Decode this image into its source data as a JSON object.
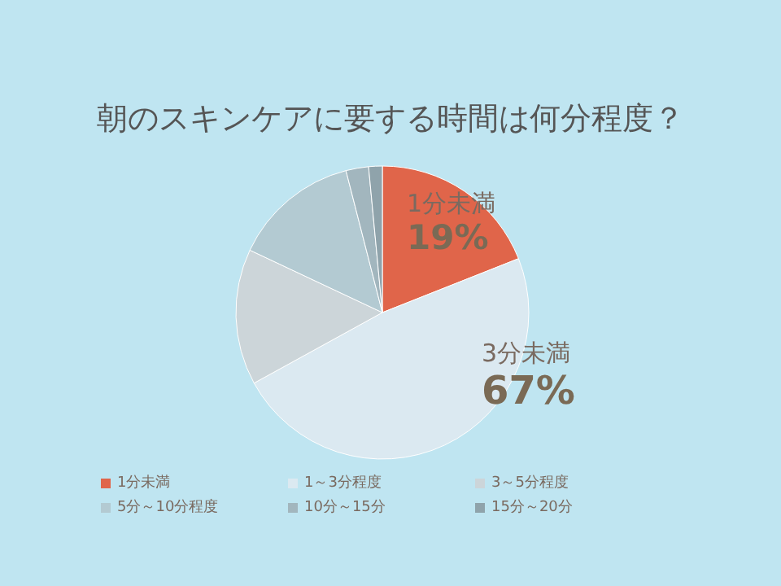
{
  "chart_data": {
    "type": "pie",
    "title": "朝のスキンケアに要する時間は何分程度？",
    "categories": [
      "1分未満",
      "1～3分程度",
      "3～5分程度",
      "5分～10分程度",
      "10分～15分",
      "15分～20分"
    ],
    "values": [
      19,
      48,
      15,
      14,
      2.5,
      1.5
    ],
    "colors": [
      "#e0654a",
      "#dbe9f1",
      "#ccd5d9",
      "#b3cad2",
      "#a2b6be",
      "#8fa3ab"
    ],
    "legend": "bottom",
    "annotations": [
      "1分未満",
      "19%",
      "3分未満",
      "67%"
    ]
  }
}
